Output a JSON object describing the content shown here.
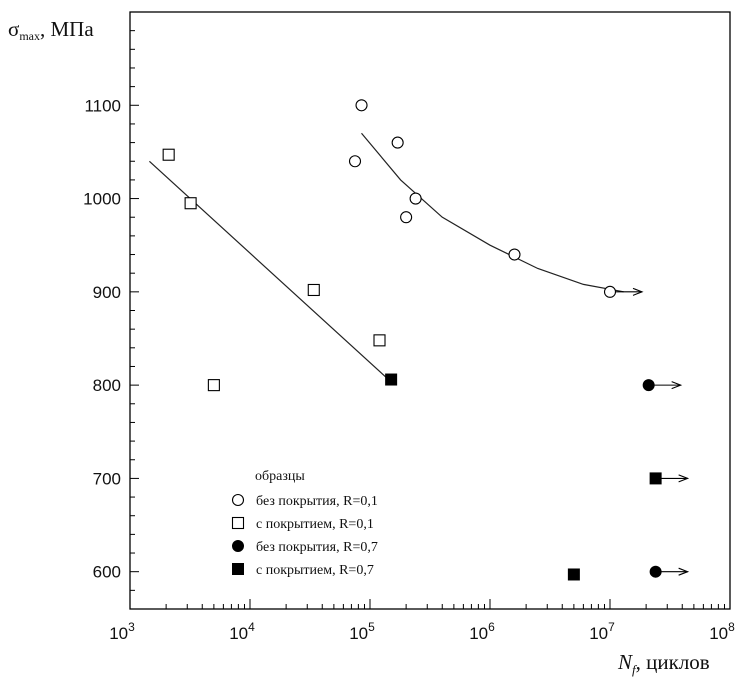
{
  "chart_data": {
    "type": "scatter",
    "title": "",
    "ylabel": {
      "main": "σ",
      "sub": "max",
      "rest": ", МПа"
    },
    "xlabel": {
      "main": "N",
      "sub": "f",
      "rest": ", циклов"
    },
    "x_scale": "log",
    "xlim": [
      1000,
      100000000
    ],
    "ylim": [
      560,
      1200
    ],
    "x_ticks": [
      {
        "value": 1000,
        "base": "10",
        "exp": "3"
      },
      {
        "value": 10000,
        "base": "10",
        "exp": "4"
      },
      {
        "value": 100000,
        "base": "10",
        "exp": "5"
      },
      {
        "value": 1000000,
        "base": "10",
        "exp": "6"
      },
      {
        "value": 10000000,
        "base": "10",
        "exp": "7"
      },
      {
        "value": 100000000,
        "base": "10",
        "exp": "8"
      }
    ],
    "y_ticks": [
      600,
      700,
      800,
      900,
      1000,
      1100
    ],
    "grid": false,
    "legend_position": "bottom-left",
    "legend_title": "образцы",
    "series": [
      {
        "name": "без покрытия, R=0,1",
        "marker": "circle-open",
        "points": [
          {
            "x": 85000,
            "y": 1100
          },
          {
            "x": 75000,
            "y": 1040
          },
          {
            "x": 170000,
            "y": 1060
          },
          {
            "x": 240000,
            "y": 1000
          },
          {
            "x": 200000,
            "y": 980
          },
          {
            "x": 1600000,
            "y": 940
          },
          {
            "x": 10000000,
            "y": 900,
            "runout": true
          }
        ]
      },
      {
        "name": "с покрытием, R=0,1",
        "marker": "square-open",
        "points": [
          {
            "x": 2100,
            "y": 1047
          },
          {
            "x": 3200,
            "y": 995
          },
          {
            "x": 5000,
            "y": 800
          },
          {
            "x": 34000,
            "y": 902
          },
          {
            "x": 120000,
            "y": 848
          }
        ]
      },
      {
        "name": "без покрытия, R=0,7",
        "marker": "circle-filled",
        "points": [
          {
            "x": 21000000,
            "y": 800,
            "runout": true
          },
          {
            "x": 24000000,
            "y": 600,
            "runout": true
          }
        ]
      },
      {
        "name": "с покрытием, R=0,7",
        "marker": "square-filled",
        "points": [
          {
            "x": 150000,
            "y": 806
          },
          {
            "x": 5000000,
            "y": 597
          },
          {
            "x": 24000000,
            "y": 700,
            "runout": true
          }
        ]
      }
    ],
    "fit_lines": [
      {
        "for": "без покрытия, R=0,1",
        "shape": "curve",
        "points": [
          [
            85000,
            1070
          ],
          [
            180000,
            1020
          ],
          [
            400000,
            980
          ],
          [
            1000000,
            950
          ],
          [
            2500000,
            925
          ],
          [
            6000000,
            908
          ],
          [
            13000000,
            900
          ]
        ]
      },
      {
        "for": "с покрытием, R=0,1",
        "shape": "line",
        "points": [
          [
            1450,
            1040
          ],
          [
            140000,
            807
          ]
        ]
      }
    ]
  }
}
